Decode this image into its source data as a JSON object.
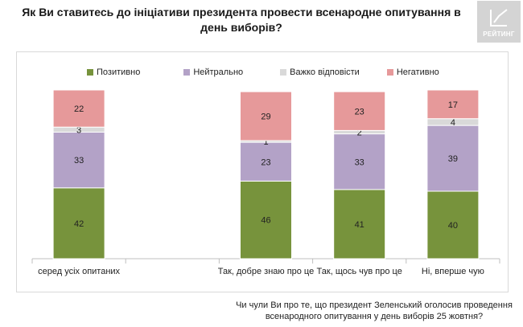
{
  "chart_data": {
    "type": "bar",
    "stacked": true,
    "title": "Як Ви ставитесь до ініціативи президента провести всенародне опитування в день виборів?",
    "categories": [
      "серед усіх опитаних",
      "",
      "Так, добре знаю про це",
      "Так, щось чув про це",
      "Ні, вперше чую"
    ],
    "series": [
      {
        "name": "Позитивно",
        "values": [
          42,
          null,
          46,
          41,
          40
        ],
        "color": "#77933c"
      },
      {
        "name": "Нейтрально",
        "values": [
          33,
          null,
          23,
          33,
          39
        ],
        "color": "#b3a2c7"
      },
      {
        "name": "Важко відповісти",
        "values": [
          3,
          null,
          1,
          2,
          4
        ],
        "color": "#d9d9d9"
      },
      {
        "name": "Негативно",
        "values": [
          22,
          null,
          29,
          23,
          17
        ],
        "color": "#e6999a"
      }
    ],
    "ylim": [
      0,
      100
    ],
    "legend_position": "top",
    "xlabel": "Чи чули Ви про те, що президент Зеленський оголосив проведення всенародного опитування у день виборів 25 жовтня?",
    "grid": false
  },
  "logo": {
    "text": "РЕЙТИНГ"
  }
}
